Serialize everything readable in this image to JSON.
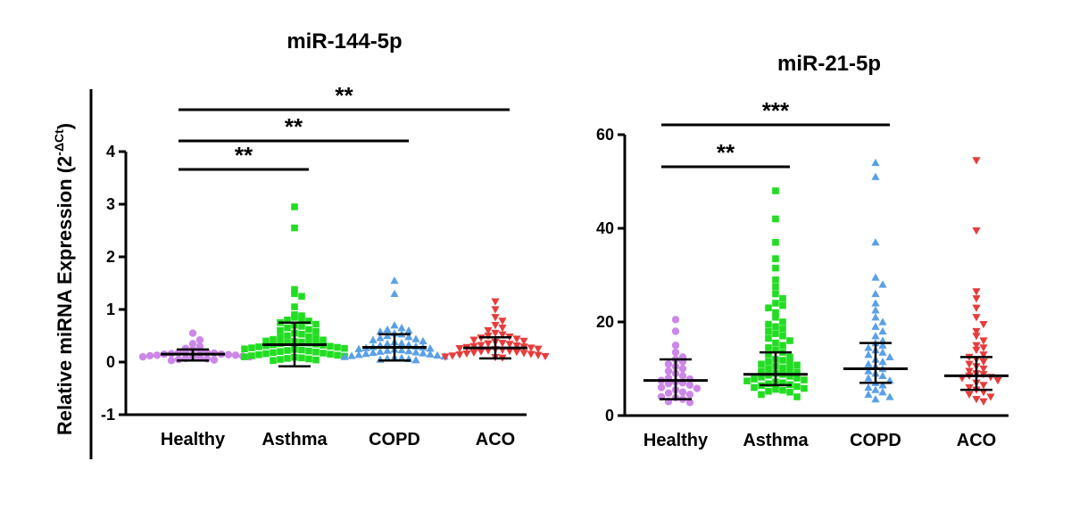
{
  "y_axis_label": {
    "main": "Relative miRNA  Expression (2",
    "superscript": "-ΔCt",
    "closing": ")"
  },
  "chart_data": [
    {
      "type": "scatter",
      "title": "miR-144-5p",
      "xlabel": "",
      "ylabel": "Relative miRNA  Expression (2^-ΔCt)",
      "ylim": [
        -1,
        4
      ],
      "yticks": [
        "-1",
        "0",
        "1",
        "2",
        "3",
        "4"
      ],
      "categories": [
        "Healthy",
        "Asthma",
        "COPD",
        "ACO"
      ],
      "series": [
        {
          "name": "Healthy",
          "color": "#cc88e8",
          "marker": "circle",
          "median": 0.15,
          "q1": 0.03,
          "q3": 0.24,
          "values": [
            0.55,
            0.42,
            0.35,
            0.3,
            0.26,
            0.24,
            0.22,
            0.2,
            0.19,
            0.18,
            0.17,
            0.16,
            0.15,
            0.15,
            0.14,
            0.13,
            0.13,
            0.12,
            0.11,
            0.1,
            0.1,
            0.09,
            0.08,
            0.07,
            0.06,
            0.05,
            0.04,
            0.03
          ]
        },
        {
          "name": "Asthma",
          "color": "#22dd22",
          "marker": "square",
          "median": 0.33,
          "q1": -0.08,
          "q3": 0.75,
          "values": [
            2.95,
            2.55,
            1.38,
            1.3,
            1.25,
            1.05,
            0.9,
            0.88,
            0.85,
            0.82,
            0.8,
            0.78,
            0.75,
            0.72,
            0.7,
            0.68,
            0.65,
            0.62,
            0.6,
            0.58,
            0.55,
            0.53,
            0.5,
            0.48,
            0.47,
            0.45,
            0.43,
            0.42,
            0.4,
            0.39,
            0.38,
            0.37,
            0.36,
            0.35,
            0.34,
            0.33,
            0.32,
            0.31,
            0.3,
            0.29,
            0.28,
            0.27,
            0.26,
            0.25,
            0.24,
            0.23,
            0.22,
            0.21,
            0.2,
            0.19,
            0.18,
            0.17,
            0.16,
            0.15,
            0.14,
            0.13,
            0.12,
            0.11,
            0.1,
            0.09,
            0.08,
            0.07,
            0.06,
            0.05,
            0.04,
            0.03
          ]
        },
        {
          "name": "COPD",
          "color": "#5aa0e6",
          "marker": "triangle-up",
          "median": 0.28,
          "q1": 0.03,
          "q3": 0.53,
          "values": [
            1.55,
            1.3,
            0.7,
            0.65,
            0.62,
            0.6,
            0.58,
            0.55,
            0.53,
            0.5,
            0.48,
            0.46,
            0.44,
            0.42,
            0.4,
            0.38,
            0.36,
            0.35,
            0.33,
            0.32,
            0.3,
            0.29,
            0.28,
            0.27,
            0.26,
            0.25,
            0.24,
            0.23,
            0.22,
            0.21,
            0.2,
            0.19,
            0.18,
            0.17,
            0.16,
            0.15,
            0.14,
            0.13,
            0.12,
            0.11,
            0.1,
            0.09,
            0.08,
            0.07,
            0.06,
            0.05,
            0.04
          ]
        },
        {
          "name": "ACO",
          "color": "#e83c3c",
          "marker": "triangle-down",
          "median": 0.27,
          "q1": 0.07,
          "q3": 0.47,
          "values": [
            1.15,
            1.0,
            0.85,
            0.78,
            0.7,
            0.65,
            0.6,
            0.55,
            0.52,
            0.5,
            0.48,
            0.46,
            0.44,
            0.42,
            0.4,
            0.38,
            0.36,
            0.35,
            0.34,
            0.32,
            0.31,
            0.3,
            0.29,
            0.28,
            0.27,
            0.26,
            0.25,
            0.24,
            0.23,
            0.22,
            0.21,
            0.2,
            0.19,
            0.18,
            0.17,
            0.16,
            0.15,
            0.14,
            0.13,
            0.12,
            0.11,
            0.1,
            0.09,
            0.08
          ]
        }
      ],
      "significance": [
        {
          "from": "Healthy",
          "to": "Asthma",
          "label": "**"
        },
        {
          "from": "Healthy",
          "to": "COPD",
          "label": "**"
        },
        {
          "from": "Healthy",
          "to": "ACO",
          "label": "**"
        }
      ]
    },
    {
      "type": "scatter",
      "title": "miR-21-5p",
      "xlabel": "",
      "ylabel": "",
      "ylim": [
        0,
        60
      ],
      "yticks": [
        "0",
        "20",
        "40",
        "60"
      ],
      "categories": [
        "Healthy",
        "Asthma",
        "COPD",
        "ACO"
      ],
      "series": [
        {
          "name": "Healthy",
          "color": "#cc88e8",
          "marker": "circle",
          "median": 7.5,
          "q1": 3.5,
          "q3": 12.0,
          "values": [
            20.5,
            18.0,
            15.0,
            13.5,
            12.5,
            12.0,
            11.5,
            11.0,
            10.5,
            10.0,
            9.5,
            9.0,
            8.5,
            8.0,
            7.8,
            7.5,
            7.2,
            7.0,
            6.8,
            6.5,
            6.0,
            5.8,
            5.5,
            5.0,
            4.8,
            4.5,
            4.0,
            3.8,
            3.5,
            3.0,
            2.8
          ]
        },
        {
          "name": "Asthma",
          "color": "#22dd22",
          "marker": "square",
          "median": 8.8,
          "q1": 6.5,
          "q3": 13.5,
          "values": [
            48.0,
            42.0,
            37.0,
            33.5,
            31.5,
            29.0,
            27.5,
            26.0,
            25.0,
            24.0,
            23.5,
            23.0,
            22.0,
            21.0,
            20.0,
            19.5,
            19.0,
            18.5,
            18.0,
            17.5,
            17.0,
            16.5,
            16.0,
            15.5,
            15.0,
            14.5,
            14.0,
            13.5,
            13.0,
            12.5,
            12.0,
            11.8,
            11.5,
            11.2,
            11.0,
            10.8,
            10.5,
            10.2,
            10.0,
            9.8,
            9.5,
            9.3,
            9.0,
            8.8,
            8.6,
            8.4,
            8.2,
            8.0,
            7.8,
            7.6,
            7.4,
            7.2,
            7.0,
            6.8,
            6.6,
            6.4,
            6.2,
            6.0,
            5.8,
            5.6,
            5.4,
            5.2,
            5.0,
            4.5,
            4.0
          ]
        },
        {
          "name": "COPD",
          "color": "#5aa0e6",
          "marker": "triangle-up",
          "median": 10.0,
          "q1": 7.0,
          "q3": 15.5,
          "values": [
            54.0,
            51.0,
            37.0,
            29.5,
            28.0,
            26.0,
            24.0,
            22.5,
            21.0,
            20.0,
            19.0,
            18.0,
            17.0,
            16.0,
            15.5,
            15.0,
            14.5,
            14.0,
            13.5,
            13.0,
            12.5,
            12.0,
            11.5,
            11.0,
            10.5,
            10.0,
            9.5,
            9.0,
            8.5,
            8.0,
            7.5,
            7.0,
            6.5,
            6.0,
            5.5,
            5.0,
            4.5,
            4.0,
            3.5
          ]
        },
        {
          "name": "ACO",
          "color": "#e83c3c",
          "marker": "triangle-down",
          "median": 8.5,
          "q1": 5.5,
          "q3": 12.5,
          "values": [
            54.5,
            39.5,
            26.5,
            25.0,
            23.0,
            21.0,
            19.5,
            18.0,
            17.0,
            16.0,
            15.0,
            14.5,
            14.0,
            13.0,
            12.5,
            12.0,
            11.5,
            11.0,
            10.5,
            10.0,
            9.5,
            9.0,
            8.8,
            8.5,
            8.2,
            8.0,
            7.5,
            7.0,
            6.5,
            6.0,
            5.5,
            5.0,
            4.5,
            4.0,
            3.5,
            3.0
          ]
        }
      ],
      "significance": [
        {
          "from": "Healthy",
          "to": "Asthma",
          "label": "**"
        },
        {
          "from": "Healthy",
          "to": "COPD",
          "label": "***"
        }
      ]
    }
  ]
}
